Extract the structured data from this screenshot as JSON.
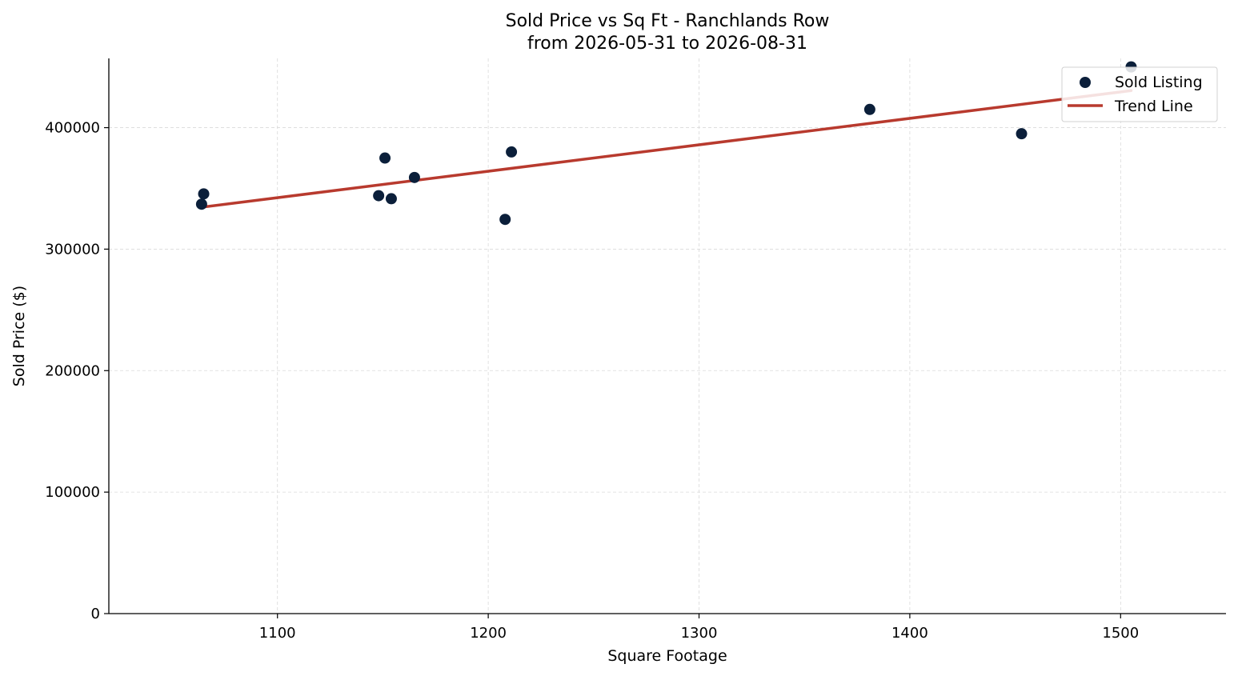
{
  "chart_data": {
    "type": "scatter",
    "title": "Sold Price vs Sq Ft - Ranchlands Row",
    "subtitle": "from 2026-05-31 to 2026-08-31",
    "xlabel": "Square Footage",
    "ylabel": "Sold Price ($)",
    "xlim": [
      1020,
      1550
    ],
    "ylim": [
      0,
      457000
    ],
    "xticks": [
      1100,
      1200,
      1300,
      1400,
      1500
    ],
    "yticks": [
      0,
      100000,
      200000,
      300000,
      400000
    ],
    "xtick_labels": [
      "1100",
      "1200",
      "1300",
      "1400",
      "1500"
    ],
    "ytick_labels": [
      "0",
      "100000",
      "200000",
      "300000",
      "400000"
    ],
    "grid": true,
    "legend_position": "top-right",
    "series": [
      {
        "name": "Sold Listing",
        "type": "scatter",
        "color": "#0b1f3a",
        "points": [
          {
            "x": 1064,
            "y": 337000
          },
          {
            "x": 1065,
            "y": 345500
          },
          {
            "x": 1148,
            "y": 344000
          },
          {
            "x": 1151,
            "y": 375000
          },
          {
            "x": 1154,
            "y": 341500
          },
          {
            "x": 1165,
            "y": 359000
          },
          {
            "x": 1208,
            "y": 324500
          },
          {
            "x": 1211,
            "y": 380000
          },
          {
            "x": 1381,
            "y": 415000
          },
          {
            "x": 1453,
            "y": 395000
          },
          {
            "x": 1505,
            "y": 450000
          }
        ]
      },
      {
        "name": "Trend Line",
        "type": "line",
        "color": "#b83a2e",
        "points": [
          {
            "x": 1064,
            "y": 334500
          },
          {
            "x": 1505,
            "y": 430500
          }
        ]
      }
    ]
  }
}
